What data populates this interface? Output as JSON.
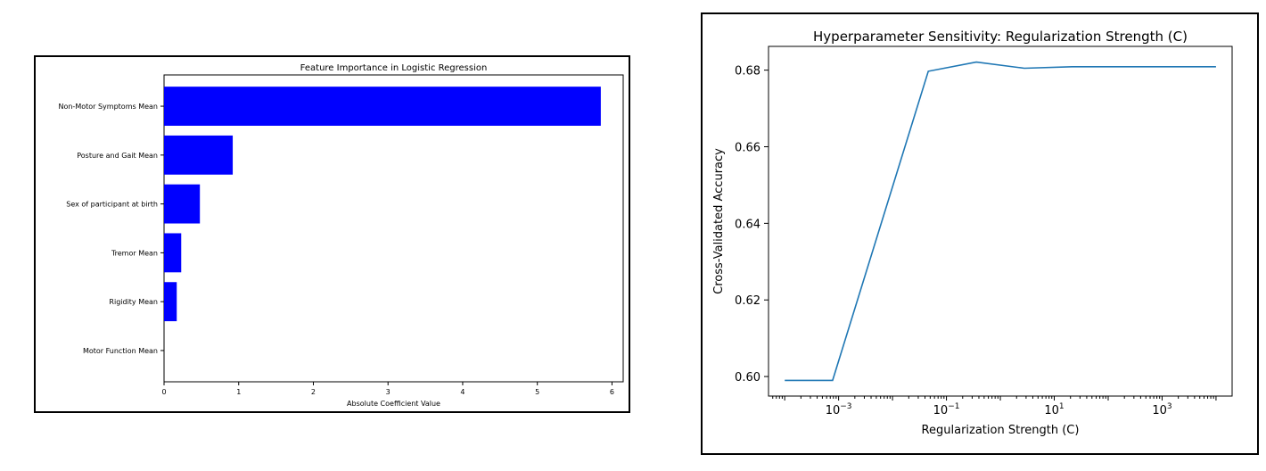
{
  "chart_data": [
    {
      "type": "bar",
      "orientation": "horizontal",
      "title": "Feature Importance in Logistic Regression",
      "xlabel": "Absolute Coefficient Value",
      "ylabel": "",
      "xlim": [
        0,
        6.15
      ],
      "xticks": [
        0,
        1,
        2,
        3,
        4,
        5,
        6
      ],
      "categories": [
        "Non-Motor Symptoms Mean",
        "Posture and Gait Mean",
        "Sex of participant at birth",
        "Tremor Mean",
        "Rigidity Mean",
        "Motor Function Mean"
      ],
      "values": [
        5.85,
        0.92,
        0.48,
        0.23,
        0.17,
        0.0
      ],
      "bar_color": "#0000ff",
      "grid": false
    },
    {
      "type": "line",
      "title": "Hyperparameter Sensitivity: Regularization Strength (C)",
      "xlabel": "Regularization Strength (C)",
      "ylabel": "Cross-Validated Accuracy",
      "xscale": "log",
      "xlim": [
        5.01e-05,
        19900
      ],
      "ylim": [
        0.5949,
        0.6862
      ],
      "xticks": [
        0.001,
        0.1,
        10,
        1000
      ],
      "xtick_labels": [
        {
          "base": "10",
          "exp": "−3"
        },
        {
          "base": "10",
          "exp": "−1"
        },
        {
          "base": "10",
          "exp": "1"
        },
        {
          "base": "10",
          "exp": "3"
        }
      ],
      "yticks": [
        0.6,
        0.62,
        0.64,
        0.66,
        0.68
      ],
      "ytick_labels": [
        "0.60",
        "0.62",
        "0.64",
        "0.66",
        "0.68"
      ],
      "x": [
        0.0001,
        0.000774,
        0.046,
        0.359,
        2.78,
        21.5,
        10000
      ],
      "y": [
        0.599,
        0.599,
        0.6797,
        0.6821,
        0.6805,
        0.6809,
        0.6809
      ],
      "line_color": "#1f77b4",
      "grid": false
    }
  ]
}
